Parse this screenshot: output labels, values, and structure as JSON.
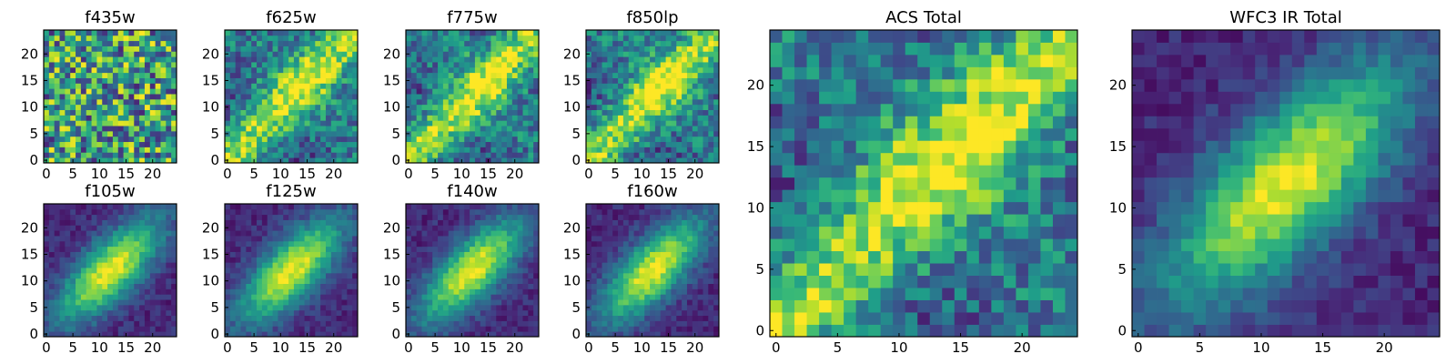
{
  "chart_data": [
    {
      "type": "heatmap",
      "title": "f435w",
      "grid_size": 25,
      "pattern": "noise",
      "xticks": [
        0,
        5,
        10,
        15,
        20
      ],
      "yticks": [
        0,
        5,
        10,
        15,
        20
      ],
      "xlim": [
        0,
        25
      ],
      "ylim": [
        0,
        25
      ],
      "colormap": "viridis"
    },
    {
      "type": "heatmap",
      "title": "f625w",
      "grid_size": 25,
      "pattern": "diagonal",
      "xticks": [
        0,
        5,
        10,
        15,
        20
      ],
      "yticks": [
        0,
        5,
        10,
        15,
        20
      ],
      "xlim": [
        0,
        25
      ],
      "ylim": [
        0,
        25
      ],
      "colormap": "viridis"
    },
    {
      "type": "heatmap",
      "title": "f775w",
      "grid_size": 25,
      "pattern": "diagonal",
      "xticks": [
        0,
        5,
        10,
        15,
        20
      ],
      "yticks": [
        0,
        5,
        10,
        15,
        20
      ],
      "xlim": [
        0,
        25
      ],
      "ylim": [
        0,
        25
      ],
      "colormap": "viridis"
    },
    {
      "type": "heatmap",
      "title": "f850lp",
      "grid_size": 25,
      "pattern": "diagonal",
      "xticks": [
        0,
        5,
        10,
        15,
        20
      ],
      "yticks": [
        0,
        5,
        10,
        15,
        20
      ],
      "xlim": [
        0,
        25
      ],
      "ylim": [
        0,
        25
      ],
      "colormap": "viridis"
    },
    {
      "type": "heatmap",
      "title": "f105w",
      "grid_size": 25,
      "pattern": "smooth",
      "xticks": [
        0,
        5,
        10,
        15,
        20
      ],
      "yticks": [
        0,
        5,
        10,
        15,
        20
      ],
      "xlim": [
        0,
        25
      ],
      "ylim": [
        0,
        25
      ],
      "colormap": "viridis"
    },
    {
      "type": "heatmap",
      "title": "f125w",
      "grid_size": 25,
      "pattern": "smooth",
      "xticks": [
        0,
        5,
        10,
        15,
        20
      ],
      "yticks": [
        0,
        5,
        10,
        15,
        20
      ],
      "xlim": [
        0,
        25
      ],
      "ylim": [
        0,
        25
      ],
      "colormap": "viridis"
    },
    {
      "type": "heatmap",
      "title": "f140w",
      "grid_size": 25,
      "pattern": "smooth",
      "xticks": [
        0,
        5,
        10,
        15,
        20
      ],
      "yticks": [
        0,
        5,
        10,
        15,
        20
      ],
      "xlim": [
        0,
        25
      ],
      "ylim": [
        0,
        25
      ],
      "colormap": "viridis"
    },
    {
      "type": "heatmap",
      "title": "f160w",
      "grid_size": 25,
      "pattern": "smooth",
      "xticks": [
        0,
        5,
        10,
        15,
        20
      ],
      "yticks": [
        0,
        5,
        10,
        15,
        20
      ],
      "xlim": [
        0,
        25
      ],
      "ylim": [
        0,
        25
      ],
      "colormap": "viridis"
    },
    {
      "type": "heatmap",
      "title": "ACS Total",
      "grid_size": 25,
      "pattern": "diagonal",
      "xticks": [
        0,
        5,
        10,
        15,
        20
      ],
      "yticks": [
        0,
        5,
        10,
        15,
        20
      ],
      "xlim": [
        0,
        25
      ],
      "ylim": [
        0,
        25
      ],
      "colormap": "viridis"
    },
    {
      "type": "heatmap",
      "title": "WFC3 IR Total",
      "grid_size": 25,
      "pattern": "smooth",
      "xticks": [
        0,
        5,
        10,
        15,
        20
      ],
      "yticks": [
        0,
        5,
        10,
        15,
        20
      ],
      "xlim": [
        0,
        25
      ],
      "ylim": [
        0,
        25
      ],
      "colormap": "viridis"
    }
  ],
  "colors": {
    "viridis": [
      "#440154",
      "#482878",
      "#3e4989",
      "#31688e",
      "#26828e",
      "#1f9e89",
      "#35b779",
      "#6ece58",
      "#b5de2b",
      "#fde725"
    ]
  }
}
